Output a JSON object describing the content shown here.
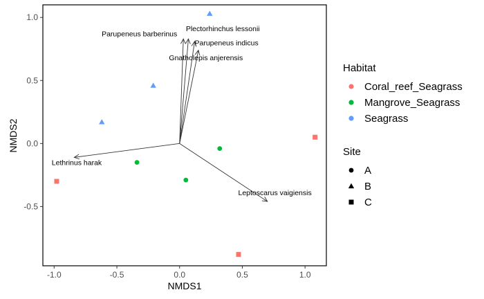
{
  "chart_data": {
    "type": "scatter",
    "xlabel": "NMDS1",
    "ylabel": "NMDS2",
    "xlim": [
      -1.09,
      1.17
    ],
    "ylim": [
      -0.97,
      1.1
    ],
    "xticks": [
      -1.0,
      -0.5,
      0.0,
      0.5,
      1.0
    ],
    "xtick_labels": [
      "-1.0",
      "-0.5",
      "0.0",
      "0.5",
      "1.0"
    ],
    "yticks": [
      -0.5,
      0.0,
      0.5,
      1.0
    ],
    "ytick_labels": [
      "-0.5",
      "0.0",
      "0.5",
      "1.0"
    ],
    "grid": false,
    "legend_position": "right",
    "habitat_legend": {
      "title": "Habitat",
      "entries": [
        {
          "label": "Coral_reef_Seagrass",
          "color": "#F8766D"
        },
        {
          "label": "Mangrove_Seagrass",
          "color": "#00BA38"
        },
        {
          "label": "Seagrass",
          "color": "#619CFF"
        }
      ]
    },
    "site_legend": {
      "title": "Site",
      "entries": [
        {
          "label": "A",
          "shape": "circle"
        },
        {
          "label": "B",
          "shape": "triangle"
        },
        {
          "label": "C",
          "shape": "square"
        }
      ]
    },
    "points": [
      {
        "x": -0.98,
        "y": -0.3,
        "habitat": "Coral_reef_Seagrass",
        "site": "C"
      },
      {
        "x": 0.47,
        "y": -0.88,
        "habitat": "Coral_reef_Seagrass",
        "site": "C"
      },
      {
        "x": 1.08,
        "y": 0.05,
        "habitat": "Coral_reef_Seagrass",
        "site": "C"
      },
      {
        "x": -0.34,
        "y": -0.15,
        "habitat": "Mangrove_Seagrass",
        "site": "A"
      },
      {
        "x": 0.05,
        "y": -0.29,
        "habitat": "Mangrove_Seagrass",
        "site": "A"
      },
      {
        "x": 0.32,
        "y": -0.04,
        "habitat": "Mangrove_Seagrass",
        "site": "A"
      },
      {
        "x": -0.62,
        "y": 0.17,
        "habitat": "Seagrass",
        "site": "B"
      },
      {
        "x": -0.21,
        "y": 0.46,
        "habitat": "Seagrass",
        "site": "B"
      },
      {
        "x": 0.24,
        "y": 1.03,
        "habitat": "Seagrass",
        "site": "B"
      }
    ],
    "vectors": [
      {
        "label": "Lethrinus harak",
        "x": -0.84,
        "y": -0.11,
        "label_x": -0.82,
        "label_y": -0.17,
        "anchor": "middle"
      },
      {
        "label": "Parupeneus barberinus",
        "x": 0.03,
        "y": 0.83,
        "label_x": -0.32,
        "label_y": 0.85,
        "anchor": "middle"
      },
      {
        "label": "Plectorhinchus lessonii",
        "x": 0.07,
        "y": 0.83,
        "label_x": 0.05,
        "label_y": 0.89,
        "anchor": "start"
      },
      {
        "label": "Parupeneus indicus",
        "x": 0.12,
        "y": 0.81,
        "label_x": 0.12,
        "label_y": 0.78,
        "anchor": "start"
      },
      {
        "label": "Gnatholepis anjerensis",
        "x": 0.15,
        "y": 0.74,
        "label_x": 0.21,
        "label_y": 0.66,
        "anchor": "middle"
      },
      {
        "label": "Leptoscarus vaigiensis",
        "x": 0.7,
        "y": -0.46,
        "label_x": 0.76,
        "label_y": -0.41,
        "anchor": "middle"
      }
    ]
  }
}
